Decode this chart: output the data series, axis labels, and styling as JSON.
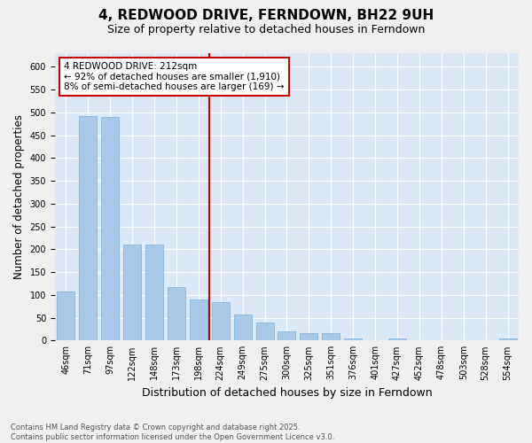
{
  "title": "4, REDWOOD DRIVE, FERNDOWN, BH22 9UH",
  "subtitle": "Size of property relative to detached houses in Ferndown",
  "xlabel": "Distribution of detached houses by size in Ferndown",
  "ylabel": "Number of detached properties",
  "categories": [
    "46sqm",
    "71sqm",
    "97sqm",
    "122sqm",
    "148sqm",
    "173sqm",
    "198sqm",
    "224sqm",
    "249sqm",
    "275sqm",
    "300sqm",
    "325sqm",
    "351sqm",
    "376sqm",
    "401sqm",
    "427sqm",
    "452sqm",
    "478sqm",
    "503sqm",
    "528sqm",
    "554sqm"
  ],
  "values": [
    107,
    493,
    490,
    210,
    210,
    118,
    90,
    85,
    57,
    40,
    20,
    17,
    17,
    5,
    0,
    5,
    0,
    0,
    0,
    0,
    5
  ],
  "bar_color": "#aac8e8",
  "bar_edge_color": "#7aaed4",
  "vline_x": 6.5,
  "vline_color": "#cc0000",
  "annotation_text": "4 REDWOOD DRIVE: 212sqm\n← 92% of detached houses are smaller (1,910)\n8% of semi-detached houses are larger (169) →",
  "annotation_box_color": "#ffffff",
  "annotation_box_edge": "#cc0000",
  "ylim": [
    0,
    630
  ],
  "yticks": [
    0,
    50,
    100,
    150,
    200,
    250,
    300,
    350,
    400,
    450,
    500,
    550,
    600
  ],
  "bg_color": "#dce8f5",
  "fig_color": "#f0f0f0",
  "footer": "Contains HM Land Registry data © Crown copyright and database right 2025.\nContains public sector information licensed under the Open Government Licence v3.0.",
  "title_fontsize": 11,
  "subtitle_fontsize": 9,
  "xlabel_fontsize": 9,
  "ylabel_fontsize": 8.5,
  "tick_fontsize": 7,
  "annotation_fontsize": 7.5,
  "footer_fontsize": 6.0
}
